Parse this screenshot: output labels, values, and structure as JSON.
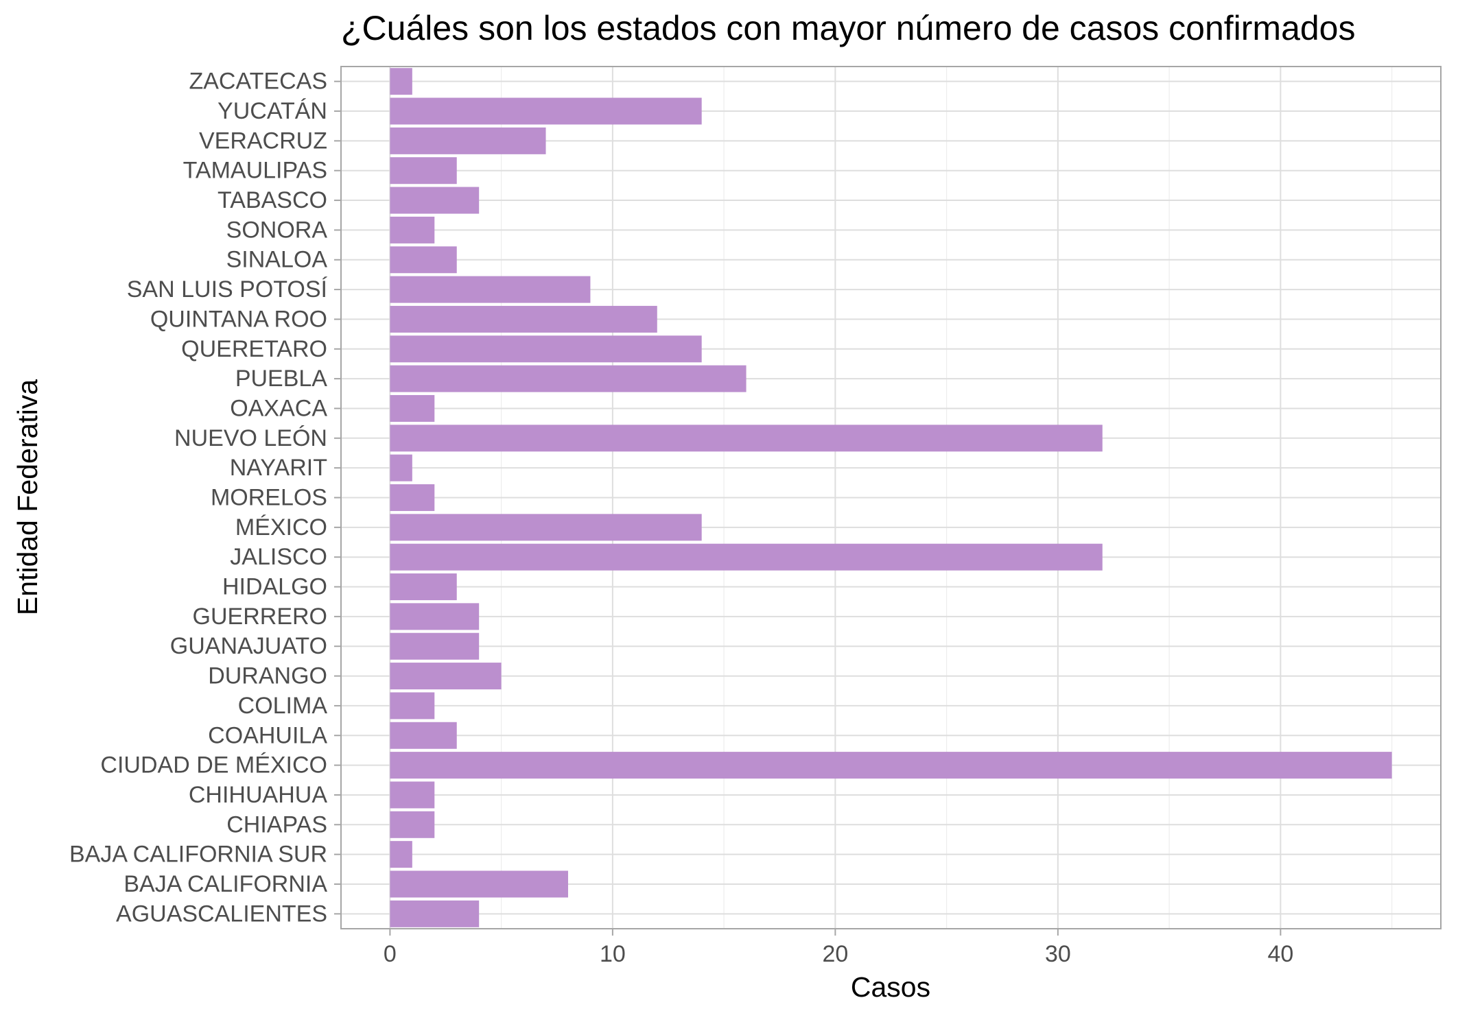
{
  "chart_data": {
    "type": "bar",
    "orientation": "horizontal",
    "title": "¿Cuáles son los estados con mayor número de casos confirmados",
    "xlabel": "Casos",
    "ylabel": "Entidad Federativa",
    "xlim": [
      -2.2,
      47.2
    ],
    "xticks": [
      0,
      10,
      20,
      30,
      40
    ],
    "grid": true,
    "bar_color": "#BB8FCE",
    "categories": [
      "AGUASCALIENTES",
      "BAJA CALIFORNIA",
      "BAJA CALIFORNIA SUR",
      "CHIAPAS",
      "CHIHUAHUA",
      "CIUDAD DE MÉXICO",
      "COAHUILA",
      "COLIMA",
      "DURANGO",
      "GUANAJUATO",
      "GUERRERO",
      "HIDALGO",
      "JALISCO",
      "MÉXICO",
      "MORELOS",
      "NAYARIT",
      "NUEVO LEÓN",
      "OAXACA",
      "PUEBLA",
      "QUERETARO",
      "QUINTANA ROO",
      "SAN LUIS POTOSÍ",
      "SINALOA",
      "SONORA",
      "TABASCO",
      "TAMAULIPAS",
      "VERACRUZ",
      "YUCATÁN",
      "ZACATECAS"
    ],
    "values": [
      4,
      8,
      1,
      2,
      2,
      45,
      3,
      2,
      5,
      4,
      4,
      3,
      32,
      14,
      2,
      1,
      32,
      2,
      16,
      14,
      12,
      9,
      3,
      2,
      4,
      3,
      7,
      14,
      1
    ]
  }
}
